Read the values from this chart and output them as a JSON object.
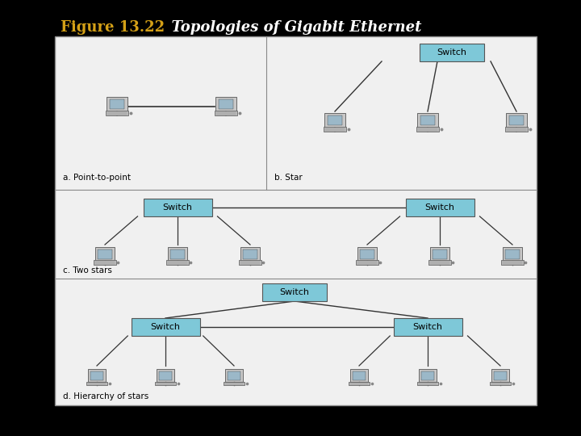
{
  "title_bold": "Figure 13.22",
  "title_italic": "  Topologies of Gigabit Ethernet",
  "title_bold_color": "#D4A017",
  "title_italic_color": "#FFFFFF",
  "background_color": "#000000",
  "panel_bg": "#F0F0F0",
  "switch_color": "#7EC8D8",
  "switch_text_color": "#000000",
  "labels": [
    "a. Point-to-point",
    "b. Star",
    "c. Two stars",
    "d. Hierarchy of stars"
  ],
  "panel_border_color": "#888888",
  "line_color": "#333333"
}
